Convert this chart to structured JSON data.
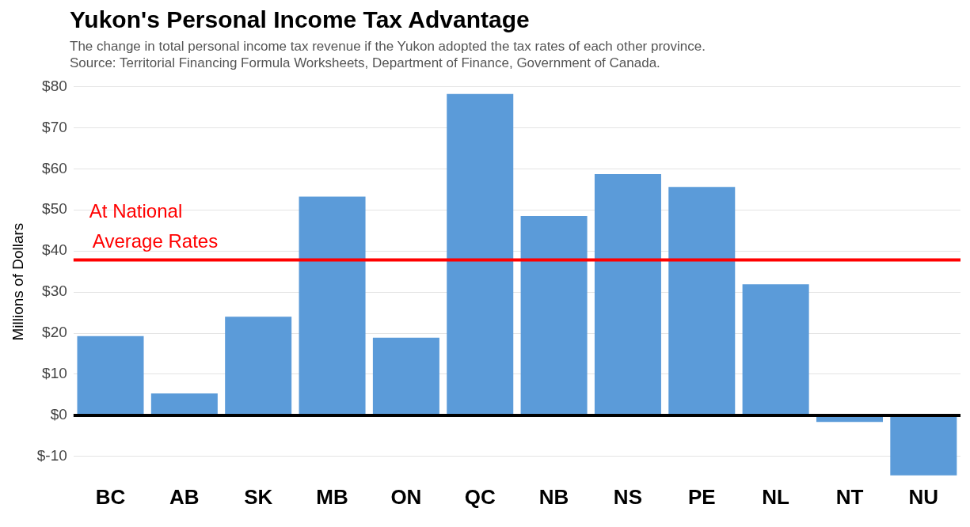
{
  "chart_data": {
    "type": "bar",
    "title": "Yukon's Personal Income Tax Advantage",
    "subtitle": "The change in total personal income tax revenue if the Yukon adopted the tax rates of each other province.\nSource: Territorial Financing Formula Worksheets, Department of Finance, Government of Canada.",
    "ylabel": "Millions of Dollars",
    "categories": [
      "BC",
      "AB",
      "SK",
      "MB",
      "ON",
      "QC",
      "NB",
      "NS",
      "PE",
      "NL",
      "NT",
      "NU"
    ],
    "values": [
      19.3,
      5.3,
      24.0,
      53.2,
      18.9,
      78.2,
      48.5,
      58.7,
      55.6,
      31.9,
      -1.6,
      -14.6
    ],
    "color": "#5b9bd9",
    "ylim": [
      -15,
      80
    ],
    "yticks": [
      {
        "value": -10,
        "label": "$-10"
      },
      {
        "value": 0,
        "label": "$0"
      },
      {
        "value": 10,
        "label": "$10"
      },
      {
        "value": 20,
        "label": "$20"
      },
      {
        "value": 30,
        "label": "$30"
      },
      {
        "value": 40,
        "label": "$40"
      },
      {
        "value": 50,
        "label": "$50"
      },
      {
        "value": 60,
        "label": "$60"
      },
      {
        "value": 70,
        "label": "$70"
      },
      {
        "value": 80,
        "label": "$80"
      }
    ],
    "grid": "y",
    "legend": false,
    "ref_lines": [
      {
        "axis": "y",
        "value": 37.8,
        "label": "At National\nAverage Rates",
        "color": "#ff0000"
      },
      {
        "axis": "y",
        "value": 0,
        "color": "#000000"
      }
    ]
  }
}
